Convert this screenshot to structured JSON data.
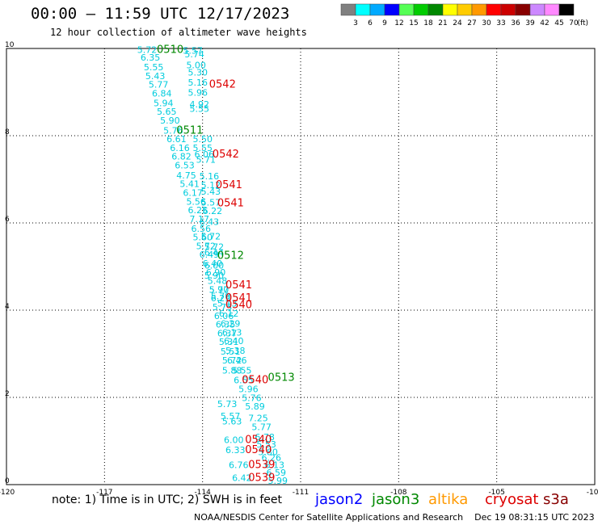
{
  "title": "00:00 – 11:59 UTC 12/17/2023",
  "subtitle": "12 hour collection of altimeter wave heights",
  "colorbar": {
    "unit": "(ft)",
    "labels": [
      "3",
      "6",
      "9",
      "12",
      "15",
      "18",
      "21",
      "24",
      "27",
      "30",
      "33",
      "36",
      "39",
      "42",
      "45",
      "70"
    ],
    "colors": [
      "#808080",
      "#00ffff",
      "#00aaff",
      "#0000ff",
      "#55ff55",
      "#00cc00",
      "#008800",
      "#ffff00",
      "#ffcc00",
      "#ff9900",
      "#ff0000",
      "#cc0000",
      "#880000",
      "#cc88ff",
      "#ff88ff",
      "#000000"
    ]
  },
  "note": "note: 1) Time is in UTC; 2) SWH is in feet",
  "satellites": [
    {
      "name": "jason2",
      "color": "#0000ff"
    },
    {
      "name": "jason3",
      "color": "#008800"
    },
    {
      "name": "altika",
      "color": "#ff9900"
    },
    {
      "name": "cryosat",
      "color": "#dd0000"
    },
    {
      "name": "s3a",
      "color": "#880000"
    }
  ],
  "footer": "NOAA/NESDIS Center for Satellite Applications and Research    Dec 19 08:31:15 UTC 2023",
  "chart_data": {
    "type": "scatter",
    "title": "12 hour collection of altimeter wave heights",
    "xlim": [
      -120,
      -102
    ],
    "ylim": [
      0,
      10
    ],
    "x_ticks": [
      "-120",
      "-117",
      "-114",
      "-111",
      "-108",
      "-105",
      "-102"
    ],
    "y_ticks": [
      "0",
      "2",
      "4",
      "6",
      "8",
      "10"
    ],
    "grid": true,
    "point_color": "#00ccdd",
    "points": [
      {
        "x": -116.0,
        "y": 9.9,
        "v": "5.72"
      },
      {
        "x": -115.9,
        "y": 9.72,
        "v": "6.35"
      },
      {
        "x": -115.8,
        "y": 9.5,
        "v": "5.55"
      },
      {
        "x": -115.75,
        "y": 9.3,
        "v": "5.43"
      },
      {
        "x": -115.65,
        "y": 9.1,
        "v": "5.77"
      },
      {
        "x": -115.55,
        "y": 8.9,
        "v": "6.84"
      },
      {
        "x": -115.5,
        "y": 8.68,
        "v": "5.94"
      },
      {
        "x": -115.4,
        "y": 8.48,
        "v": "5.65"
      },
      {
        "x": -115.3,
        "y": 8.28,
        "v": "5.90"
      },
      {
        "x": -115.2,
        "y": 8.05,
        "v": "5.76"
      },
      {
        "x": -115.1,
        "y": 7.85,
        "v": "6.61"
      },
      {
        "x": -115.0,
        "y": 7.65,
        "v": "6.16"
      },
      {
        "x": -114.95,
        "y": 7.45,
        "v": "6.82"
      },
      {
        "x": -114.85,
        "y": 7.25,
        "v": "6.53"
      },
      {
        "x": -114.8,
        "y": 7.02,
        "v": "4.75"
      },
      {
        "x": -114.7,
        "y": 6.82,
        "v": "5.41"
      },
      {
        "x": -114.6,
        "y": 6.62,
        "v": "6.17"
      },
      {
        "x": -114.5,
        "y": 6.42,
        "v": "5.56"
      },
      {
        "x": -114.45,
        "y": 6.22,
        "v": "6.25"
      },
      {
        "x": -114.4,
        "y": 6.02,
        "v": "7.17"
      },
      {
        "x": -114.35,
        "y": 5.8,
        "v": "6.56"
      },
      {
        "x": -114.3,
        "y": 5.6,
        "v": "5.60"
      },
      {
        "x": -114.2,
        "y": 5.4,
        "v": "5.72"
      },
      {
        "x": -114.1,
        "y": 5.2,
        "v": "6.49"
      },
      {
        "x": -114.0,
        "y": 5.0,
        "v": "6.40"
      },
      {
        "x": -113.9,
        "y": 4.8,
        "v": "6.90"
      },
      {
        "x": -113.85,
        "y": 4.6,
        "v": "5.48"
      },
      {
        "x": -113.8,
        "y": 4.4,
        "v": "5.77"
      },
      {
        "x": -113.75,
        "y": 4.2,
        "v": "6.29"
      },
      {
        "x": -113.7,
        "y": 4.0,
        "v": "5.73"
      },
      {
        "x": -113.65,
        "y": 3.8,
        "v": "6.06"
      },
      {
        "x": -113.6,
        "y": 3.6,
        "v": "6.35"
      },
      {
        "x": -113.55,
        "y": 3.4,
        "v": "6.37"
      },
      {
        "x": -113.5,
        "y": 3.2,
        "v": "5.31"
      },
      {
        "x": -113.45,
        "y": 2.98,
        "v": "5.51"
      },
      {
        "x": -113.4,
        "y": 2.78,
        "v": "5.72"
      },
      {
        "x": -113.4,
        "y": 2.55,
        "v": "5.88"
      },
      {
        "x": -113.55,
        "y": 1.78,
        "v": "5.73"
      },
      {
        "x": -113.45,
        "y": 1.5,
        "v": "5.57"
      },
      {
        "x": -113.4,
        "y": 1.38,
        "v": "5.63"
      },
      {
        "x": -113.35,
        "y": 0.95,
        "v": "6.00"
      },
      {
        "x": -113.3,
        "y": 0.72,
        "v": "6.33"
      },
      {
        "x": -113.2,
        "y": 0.38,
        "v": "6.76"
      },
      {
        "x": -113.1,
        "y": 0.08,
        "v": "6.42"
      },
      {
        "x": -114.6,
        "y": 9.88,
        "v": "5.57"
      },
      {
        "x": -114.55,
        "y": 9.8,
        "v": "5.74"
      },
      {
        "x": -114.5,
        "y": 9.55,
        "v": "5.00"
      },
      {
        "x": -114.45,
        "y": 9.38,
        "v": "5.30"
      },
      {
        "x": -114.45,
        "y": 9.15,
        "v": "5.16"
      },
      {
        "x": -114.45,
        "y": 8.92,
        "v": "5.96"
      },
      {
        "x": -114.4,
        "y": 8.65,
        "v": "4.92"
      },
      {
        "x": -114.4,
        "y": 8.55,
        "v": "5.55"
      },
      {
        "x": -114.3,
        "y": 7.85,
        "v": "5.50"
      },
      {
        "x": -114.3,
        "y": 7.65,
        "v": "5.55"
      },
      {
        "x": -114.25,
        "y": 7.5,
        "v": "6.06"
      },
      {
        "x": -114.2,
        "y": 7.38,
        "v": "5.71"
      },
      {
        "x": -114.1,
        "y": 7.0,
        "v": "5.16"
      },
      {
        "x": -114.05,
        "y": 6.8,
        "v": "5.12"
      },
      {
        "x": -114.05,
        "y": 6.65,
        "v": "5.43"
      },
      {
        "x": -114.05,
        "y": 6.4,
        "v": "5.57"
      },
      {
        "x": -114.0,
        "y": 6.2,
        "v": "6.22"
      },
      {
        "x": -114.1,
        "y": 5.95,
        "v": "6.43"
      },
      {
        "x": -114.05,
        "y": 5.62,
        "v": "5.72"
      },
      {
        "x": -113.95,
        "y": 5.38,
        "v": "5.72"
      },
      {
        "x": -113.95,
        "y": 5.25,
        "v": "6.44"
      },
      {
        "x": -113.95,
        "y": 4.95,
        "v": "6.00"
      },
      {
        "x": -113.95,
        "y": 4.72,
        "v": "5.90"
      },
      {
        "x": -113.8,
        "y": 4.4,
        "v": "5.90"
      },
      {
        "x": -113.75,
        "y": 4.25,
        "v": "5.79"
      },
      {
        "x": -113.55,
        "y": 4.08,
        "v": "5.13"
      },
      {
        "x": -113.5,
        "y": 3.85,
        "v": "6.12"
      },
      {
        "x": -113.45,
        "y": 3.62,
        "v": "6.29"
      },
      {
        "x": -113.4,
        "y": 3.42,
        "v": "6.13"
      },
      {
        "x": -113.35,
        "y": 3.22,
        "v": "6.40"
      },
      {
        "x": -113.3,
        "y": 3.0,
        "v": "5.38"
      },
      {
        "x": -113.25,
        "y": 2.78,
        "v": "6.46"
      },
      {
        "x": -113.1,
        "y": 2.55,
        "v": "5.55"
      },
      {
        "x": -113.05,
        "y": 2.32,
        "v": "6.55"
      },
      {
        "x": -112.9,
        "y": 2.12,
        "v": "5.96"
      },
      {
        "x": -112.8,
        "y": 1.92,
        "v": "5.76"
      },
      {
        "x": -112.7,
        "y": 1.72,
        "v": "5.89"
      },
      {
        "x": -112.6,
        "y": 1.45,
        "v": "7.25"
      },
      {
        "x": -112.5,
        "y": 1.25,
        "v": "5.77"
      },
      {
        "x": -112.4,
        "y": 1.02,
        "v": "6.78"
      },
      {
        "x": -112.35,
        "y": 0.85,
        "v": "5.53"
      },
      {
        "x": -112.3,
        "y": 0.68,
        "v": "5.80"
      },
      {
        "x": -112.2,
        "y": 0.55,
        "v": "6.26"
      },
      {
        "x": -112.1,
        "y": 0.38,
        "v": "6.13"
      },
      {
        "x": -112.05,
        "y": 0.2,
        "v": "6.59"
      },
      {
        "x": -112.0,
        "y": 0.02,
        "v": "5.99"
      }
    ],
    "time_labels": [
      {
        "x": -115.4,
        "y": 9.9,
        "t": "0510",
        "sat": "jason3"
      },
      {
        "x": -113.8,
        "y": 9.1,
        "t": "0542",
        "sat": "cryosat"
      },
      {
        "x": -114.8,
        "y": 8.05,
        "t": "0511",
        "sat": "jason3"
      },
      {
        "x": -113.7,
        "y": 7.5,
        "t": "0542",
        "sat": "cryosat"
      },
      {
        "x": -113.6,
        "y": 6.8,
        "t": "0541",
        "sat": "cryosat"
      },
      {
        "x": -113.55,
        "y": 6.38,
        "t": "0541",
        "sat": "cryosat"
      },
      {
        "x": -113.55,
        "y": 5.18,
        "t": "0512",
        "sat": "jason3"
      },
      {
        "x": -113.3,
        "y": 4.5,
        "t": "0541",
        "sat": "cryosat"
      },
      {
        "x": -113.3,
        "y": 4.2,
        "t": "0541",
        "sat": "cryosat"
      },
      {
        "x": -113.3,
        "y": 4.05,
        "t": "0540",
        "sat": "cryosat"
      },
      {
        "x": -112.0,
        "y": 2.38,
        "t": "0513",
        "sat": "jason3"
      },
      {
        "x": -112.8,
        "y": 2.32,
        "t": "0540",
        "sat": "cryosat"
      },
      {
        "x": -112.7,
        "y": 0.95,
        "t": "0540",
        "sat": "cryosat"
      },
      {
        "x": -112.7,
        "y": 0.72,
        "t": "0540",
        "sat": "cryosat"
      },
      {
        "x": -112.6,
        "y": 0.38,
        "t": "0539",
        "sat": "cryosat"
      },
      {
        "x": -112.6,
        "y": 0.08,
        "t": "0539",
        "sat": "cryosat"
      }
    ]
  }
}
